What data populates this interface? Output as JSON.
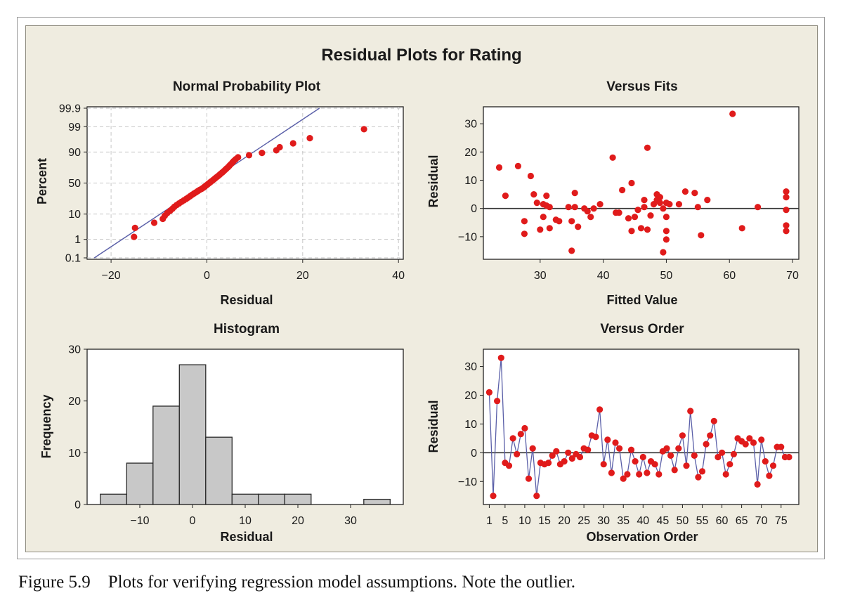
{
  "figure": {
    "title": "Residual Plots for Rating",
    "caption": "Figure 5.9    Plots for verifying regression model assumptions. Note the outlier."
  },
  "chart_data": [
    {
      "type": "scatter",
      "title": "Normal Probability Plot",
      "xlabel": "Residual",
      "ylabel": "Percent",
      "y_scale": "normal-probability",
      "grid": true,
      "xlim": [
        -25,
        41
      ],
      "x_ticks": [
        -20,
        0,
        20,
        40
      ],
      "y_ticks": [
        0.1,
        1,
        10,
        50,
        90,
        99,
        99.9
      ],
      "y_tick_labels": [
        "0.1",
        "1",
        "10",
        "50",
        "90",
        "99",
        "99.9"
      ],
      "points_x": [
        -15.2,
        -15.0,
        -11.0,
        -9.2,
        -8.8,
        -8.3,
        -7.7,
        -7.2,
        -6.8,
        -6.3,
        -5.8,
        -5.3,
        -4.8,
        -4.3,
        -3.9,
        -3.5,
        -3.1,
        -2.7,
        -2.3,
        -1.9,
        -1.5,
        -1.1,
        -0.7,
        -0.4,
        -0.1,
        0.2,
        0.5,
        0.8,
        1.1,
        1.4,
        1.7,
        2.0,
        2.3,
        2.6,
        2.9,
        3.2,
        3.5,
        3.8,
        4.1,
        4.4,
        4.7,
        5.0,
        5.3,
        5.6,
        6.0,
        6.5,
        8.8,
        11.5,
        14.5,
        15.2,
        18.0,
        21.5,
        32.8
      ],
      "fit_line": {
        "x": [
          -23.5,
          23.5
        ],
        "y_percent": [
          0.1,
          99.9
        ]
      },
      "point_color": "#e01b1b",
      "line_color": "#5a5fa8"
    },
    {
      "type": "scatter",
      "title": "Versus Fits",
      "xlabel": "Fitted Value",
      "ylabel": "Residual",
      "xlim": [
        21,
        71
      ],
      "ylim": [
        -18,
        36
      ],
      "x_ticks": [
        30,
        40,
        50,
        60,
        70
      ],
      "y_ticks": [
        -10,
        0,
        10,
        20,
        30
      ],
      "reference_line": 0,
      "points": [
        [
          23.5,
          14.5
        ],
        [
          24.5,
          4.5
        ],
        [
          26.5,
          15
        ],
        [
          27.5,
          -9
        ],
        [
          27.5,
          -4.5
        ],
        [
          28.5,
          11.5
        ],
        [
          29,
          5
        ],
        [
          29.5,
          2
        ],
        [
          30,
          -7.5
        ],
        [
          30.5,
          -3
        ],
        [
          30.5,
          1.5
        ],
        [
          31,
          4.5
        ],
        [
          31,
          1
        ],
        [
          31.5,
          -7
        ],
        [
          31.5,
          0.5
        ],
        [
          32.5,
          -4
        ],
        [
          33,
          -4.5
        ],
        [
          34.5,
          0.5
        ],
        [
          35,
          -4.5
        ],
        [
          35,
          -15
        ],
        [
          35.5,
          5.5
        ],
        [
          35.5,
          0.5
        ],
        [
          36,
          -6.5
        ],
        [
          37,
          0
        ],
        [
          37.5,
          -1
        ],
        [
          38,
          -3
        ],
        [
          38.5,
          0
        ],
        [
          39.5,
          1.5
        ],
        [
          41.5,
          18
        ],
        [
          42,
          -1.5
        ],
        [
          42.5,
          -1.5
        ],
        [
          43,
          6.5
        ],
        [
          44,
          -3.5
        ],
        [
          44.5,
          9
        ],
        [
          44.5,
          -8
        ],
        [
          45,
          -3
        ],
        [
          45.5,
          -0.5
        ],
        [
          46,
          -7
        ],
        [
          46.5,
          3
        ],
        [
          46.5,
          0.5
        ],
        [
          47,
          21.5
        ],
        [
          47,
          -7.5
        ],
        [
          47.5,
          -2.5
        ],
        [
          48,
          1.5
        ],
        [
          48.5,
          5
        ],
        [
          48.5,
          3
        ],
        [
          49,
          4
        ],
        [
          49,
          2
        ],
        [
          49.5,
          0
        ],
        [
          49.5,
          -15.5
        ],
        [
          50,
          2
        ],
        [
          50,
          -3
        ],
        [
          50,
          -8
        ],
        [
          50,
          -11
        ],
        [
          50.5,
          1.5
        ],
        [
          52,
          1.5
        ],
        [
          53,
          6
        ],
        [
          54.5,
          5.5
        ],
        [
          55,
          0.5
        ],
        [
          55.5,
          -9.5
        ],
        [
          56.5,
          3
        ],
        [
          60.5,
          33.5
        ],
        [
          62,
          -7
        ],
        [
          64.5,
          0.5
        ],
        [
          69,
          6
        ],
        [
          69,
          4
        ],
        [
          69,
          -0.5
        ],
        [
          69,
          -6
        ],
        [
          69,
          -8
        ]
      ],
      "point_color": "#e01b1b"
    },
    {
      "type": "bar",
      "title": "Histogram",
      "xlabel": "Residual",
      "ylabel": "Frequency",
      "xlim": [
        -20,
        40
      ],
      "ylim": [
        0,
        30
      ],
      "x_ticks": [
        -10,
        0,
        10,
        20,
        30
      ],
      "y_ticks": [
        0,
        10,
        20,
        30
      ],
      "bin_edges": [
        -17.5,
        -12.5,
        -7.5,
        -2.5,
        2.5,
        7.5,
        12.5,
        17.5,
        22.5,
        27.5,
        32.5,
        37.5
      ],
      "values": [
        2,
        8,
        19,
        27,
        13,
        2,
        2,
        2,
        0,
        0,
        1
      ],
      "bar_color": "#c8c8c8"
    },
    {
      "type": "line",
      "title": "Versus Order",
      "xlabel": "Observation Order",
      "ylabel": "Residual",
      "xlim": [
        -0.5,
        79.5
      ],
      "ylim": [
        -18,
        36
      ],
      "x_ticks": [
        1,
        5,
        10,
        15,
        20,
        25,
        30,
        35,
        40,
        45,
        50,
        55,
        60,
        65,
        70,
        75
      ],
      "y_ticks": [
        -10,
        0,
        10,
        20,
        30
      ],
      "reference_line": 0,
      "x": [
        1,
        2,
        3,
        4,
        5,
        6,
        7,
        8,
        9,
        10,
        11,
        12,
        13,
        14,
        15,
        16,
        17,
        18,
        19,
        20,
        21,
        22,
        23,
        24,
        25,
        26,
        27,
        28,
        29,
        30,
        31,
        32,
        33,
        34,
        35,
        36,
        37,
        38,
        39,
        40,
        41,
        42,
        43,
        44,
        45,
        46,
        47,
        48,
        49,
        50,
        51,
        52,
        53,
        54,
        55,
        56,
        57,
        58,
        59,
        60,
        61,
        62,
        63,
        64,
        65,
        66,
        67,
        68,
        69,
        70,
        71,
        72,
        73,
        74,
        75,
        76,
        77
      ],
      "y": [
        21,
        -15,
        18,
        33,
        -3.5,
        -4.5,
        5,
        -0.5,
        6.5,
        8.5,
        -9,
        1.5,
        -15,
        -3.5,
        -4,
        -3.5,
        -1,
        0.5,
        -4,
        -3,
        0,
        -2,
        -0.5,
        -1.5,
        1.5,
        1,
        6,
        5.5,
        15,
        -4,
        4.5,
        -7,
        3.5,
        1.5,
        -9,
        -7.5,
        1,
        -3,
        -7.5,
        -1.5,
        -7,
        -3,
        -4,
        -7.5,
        0.5,
        1.5,
        -1,
        -6,
        1.5,
        6,
        -4.5,
        14.5,
        -1,
        -8.5,
        -6.5,
        3,
        6,
        11,
        -1.5,
        0,
        -7.5,
        -4,
        -0.5,
        5,
        4,
        3,
        5,
        3.5,
        -11,
        4.5,
        -3,
        -8,
        -4.5,
        2,
        2,
        -1.5,
        -1.5
      ],
      "point_color": "#e01b1b",
      "line_color": "#5a5fa8"
    }
  ]
}
